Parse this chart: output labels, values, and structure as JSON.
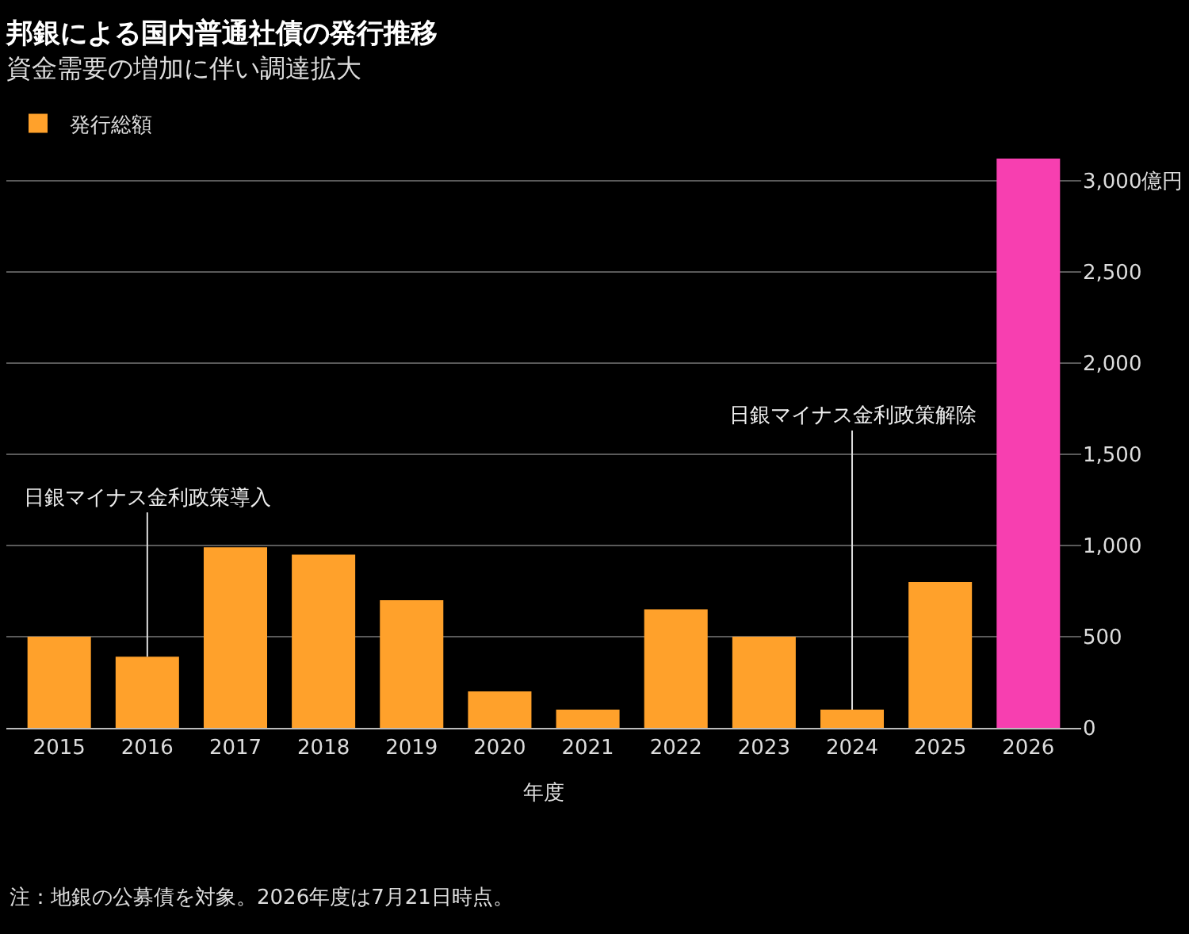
{
  "chart_data": {
    "type": "bar",
    "title": "邦銀による国内普通社債の発行推移",
    "subtitle": "資金需要の増加に伴い調達拡大",
    "xlabel": "年度",
    "categories": [
      "2015",
      "2016",
      "2017",
      "2018",
      "2019",
      "2020",
      "2021",
      "2022",
      "2023",
      "2024",
      "2025",
      "2026"
    ],
    "series": [
      {
        "name": "発行総額",
        "color": "#ffa12b",
        "colors": [
          "#ffa12b",
          "#ffa12b",
          "#ffa12b",
          "#ffa12b",
          "#ffa12b",
          "#ffa12b",
          "#ffa12b",
          "#ffa12b",
          "#ffa12b",
          "#ffa12b",
          "#ffa12b",
          "#f73fb0"
        ],
        "values": [
          500,
          390,
          990,
          950,
          700,
          200,
          100,
          650,
          500,
          100,
          800,
          3120
        ]
      }
    ],
    "ylim": [
      0,
      3120
    ],
    "yticks": [
      0,
      500,
      {
        "value": 1000,
        "label": "1,000"
      },
      {
        "value": 1500,
        "label": "1,500"
      },
      {
        "value": 2000,
        "label": "2,000"
      },
      {
        "value": 2500,
        "label": "2,500"
      },
      {
        "value": 3000,
        "label": "3,000億円"
      }
    ],
    "grid": "y",
    "legend": "top left",
    "annotations": [
      {
        "text": "日銀マイナス金利政策導入",
        "x": "2016",
        "y": 390
      },
      {
        "text": "日銀マイナス金利政策解除",
        "x": "2024",
        "y": 100
      },
      "注：地銀の公募債を対象。2026年度は7月21日時点。"
    ]
  }
}
